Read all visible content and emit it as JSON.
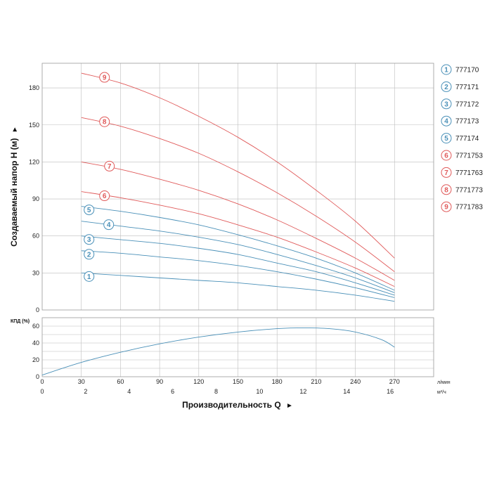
{
  "chart_data": [
    {
      "type": "line",
      "ylabel": "Создаваемый напор H (м)",
      "ylabel_arrow": "►",
      "ylim": [
        0,
        200
      ],
      "yticks": [
        "0",
        "30",
        "60",
        "90",
        "120",
        "150",
        "180"
      ],
      "xlim": [
        0,
        300
      ],
      "grid": true,
      "legend_position": "right",
      "series": [
        {
          "name": "777170",
          "label": "1",
          "color": "#4a90b8",
          "x": [
            30,
            60,
            90,
            120,
            150,
            180,
            210,
            240,
            270
          ],
          "y": [
            30,
            28,
            26,
            24,
            22,
            19,
            16,
            12,
            7
          ]
        },
        {
          "name": "777171",
          "label": "2",
          "color": "#4a90b8",
          "x": [
            30,
            60,
            90,
            120,
            150,
            180,
            210,
            240,
            270
          ],
          "y": [
            48,
            46,
            43,
            40,
            36,
            31,
            25,
            18,
            10
          ]
        },
        {
          "name": "777172",
          "label": "3",
          "color": "#4a90b8",
          "x": [
            30,
            60,
            90,
            120,
            150,
            180,
            210,
            240,
            270
          ],
          "y": [
            60,
            57,
            54,
            50,
            45,
            38,
            31,
            22,
            12
          ]
        },
        {
          "name": "777173",
          "label": "4",
          "color": "#4a90b8",
          "x": [
            30,
            60,
            90,
            120,
            150,
            180,
            210,
            240,
            270
          ],
          "y": [
            72,
            68,
            64,
            59,
            53,
            45,
            36,
            26,
            14
          ]
        },
        {
          "name": "777174",
          "label": "5",
          "color": "#4a90b8",
          "x": [
            30,
            60,
            90,
            120,
            150,
            180,
            210,
            240,
            270
          ],
          "y": [
            84,
            80,
            75,
            69,
            61,
            52,
            42,
            30,
            16
          ]
        },
        {
          "name": "7771753",
          "label": "6",
          "color": "#e05a5a",
          "x": [
            30,
            60,
            90,
            120,
            150,
            180,
            210,
            240,
            270
          ],
          "y": [
            96,
            91,
            85,
            78,
            69,
            59,
            47,
            34,
            19
          ]
        },
        {
          "name": "7771763",
          "label": "7",
          "color": "#e05a5a",
          "x": [
            30,
            60,
            90,
            120,
            150,
            180,
            210,
            240,
            270
          ],
          "y": [
            120,
            114,
            106,
            97,
            86,
            73,
            58,
            42,
            24
          ]
        },
        {
          "name": "7771773",
          "label": "8",
          "color": "#e05a5a",
          "x": [
            30,
            60,
            90,
            120,
            150,
            180,
            210,
            240,
            270
          ],
          "y": [
            156,
            149,
            139,
            127,
            112,
            95,
            76,
            55,
            31
          ]
        },
        {
          "name": "7771783",
          "label": "9",
          "color": "#e05a5a",
          "x": [
            30,
            60,
            90,
            120,
            150,
            180,
            210,
            240,
            270
          ],
          "y": [
            192,
            184,
            172,
            157,
            140,
            120,
            97,
            72,
            42
          ]
        }
      ]
    },
    {
      "type": "line",
      "ylabel": "КПД (%)",
      "ylim": [
        0,
        70
      ],
      "yticks": [
        "0",
        "20",
        "40",
        "60"
      ],
      "xlim": [
        0,
        300
      ],
      "grid": true,
      "series": [
        {
          "color": "#4a90b8",
          "x": [
            0,
            30,
            60,
            90,
            120,
            150,
            180,
            200,
            220,
            240,
            260,
            270
          ],
          "y": [
            2,
            17,
            29,
            39,
            47,
            53,
            57,
            58,
            57,
            53,
            44,
            35
          ]
        }
      ],
      "xticks_lmin": [
        "0",
        "30",
        "60",
        "90",
        "120",
        "150",
        "180",
        "210",
        "240",
        "270"
      ],
      "xticks_m3h": [
        "0",
        "2",
        "4",
        "6",
        "8",
        "10",
        "12",
        "14",
        "16"
      ],
      "xunit_lmin": "л/мин",
      "xunit_m3h": "м³/ч",
      "xlabel": "Производительность Q",
      "xlabel_arrow": "►"
    }
  ]
}
